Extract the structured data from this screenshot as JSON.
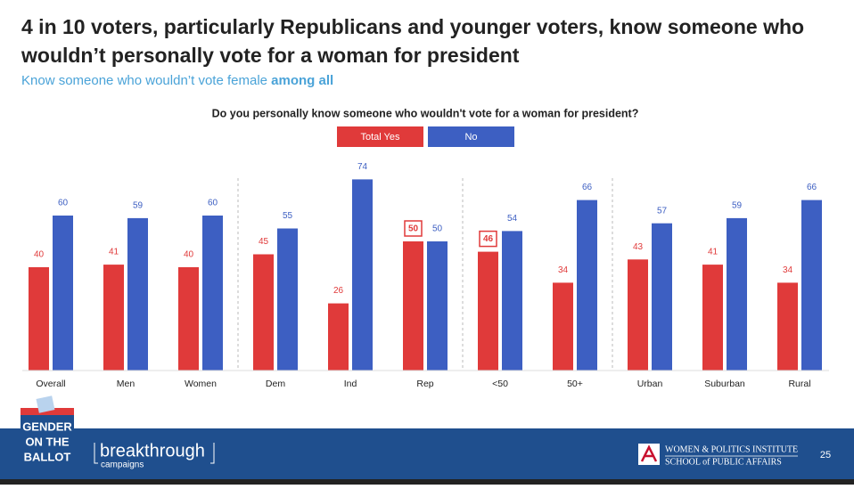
{
  "chart_data": {
    "type": "bar",
    "title": [
      "4 in 10 voters, particularly Republicans and younger voters, know someone who",
      "wouldn’t personally vote for a woman for president"
    ],
    "subtitle": "Know someone who wouldn’t vote female",
    "subtitle_emphasis": "among all",
    "question": "Do you personally know someone who wouldn't vote for a woman for president?",
    "categories": [
      "Overall",
      "Men",
      "Women",
      "Dem",
      "Ind",
      "Rep",
      "<50",
      "50+",
      "Urban",
      "Suburban",
      "Rural"
    ],
    "series": [
      {
        "name": "Total Yes",
        "color": "#e03a3a",
        "values": [
          40,
          41,
          40,
          45,
          26,
          50,
          46,
          34,
          43,
          41,
          34
        ],
        "highlight": [
          5,
          6
        ]
      },
      {
        "name": "No",
        "color": "#3d5fc2",
        "values": [
          60,
          59,
          60,
          55,
          74,
          50,
          54,
          66,
          57,
          59,
          66
        ]
      }
    ],
    "group_starts": [
      3,
      6,
      8
    ]
  },
  "footer": {
    "logo_lines": [
      "GENDER",
      "ON THE",
      "BALLOT"
    ],
    "brand": "breakthrough",
    "brand_sub": "campaigns",
    "institute": "WOMEN & POLITICS INSTITUTE",
    "school": "SCHOOL of PUBLIC AFFAIRS",
    "page": 25
  }
}
